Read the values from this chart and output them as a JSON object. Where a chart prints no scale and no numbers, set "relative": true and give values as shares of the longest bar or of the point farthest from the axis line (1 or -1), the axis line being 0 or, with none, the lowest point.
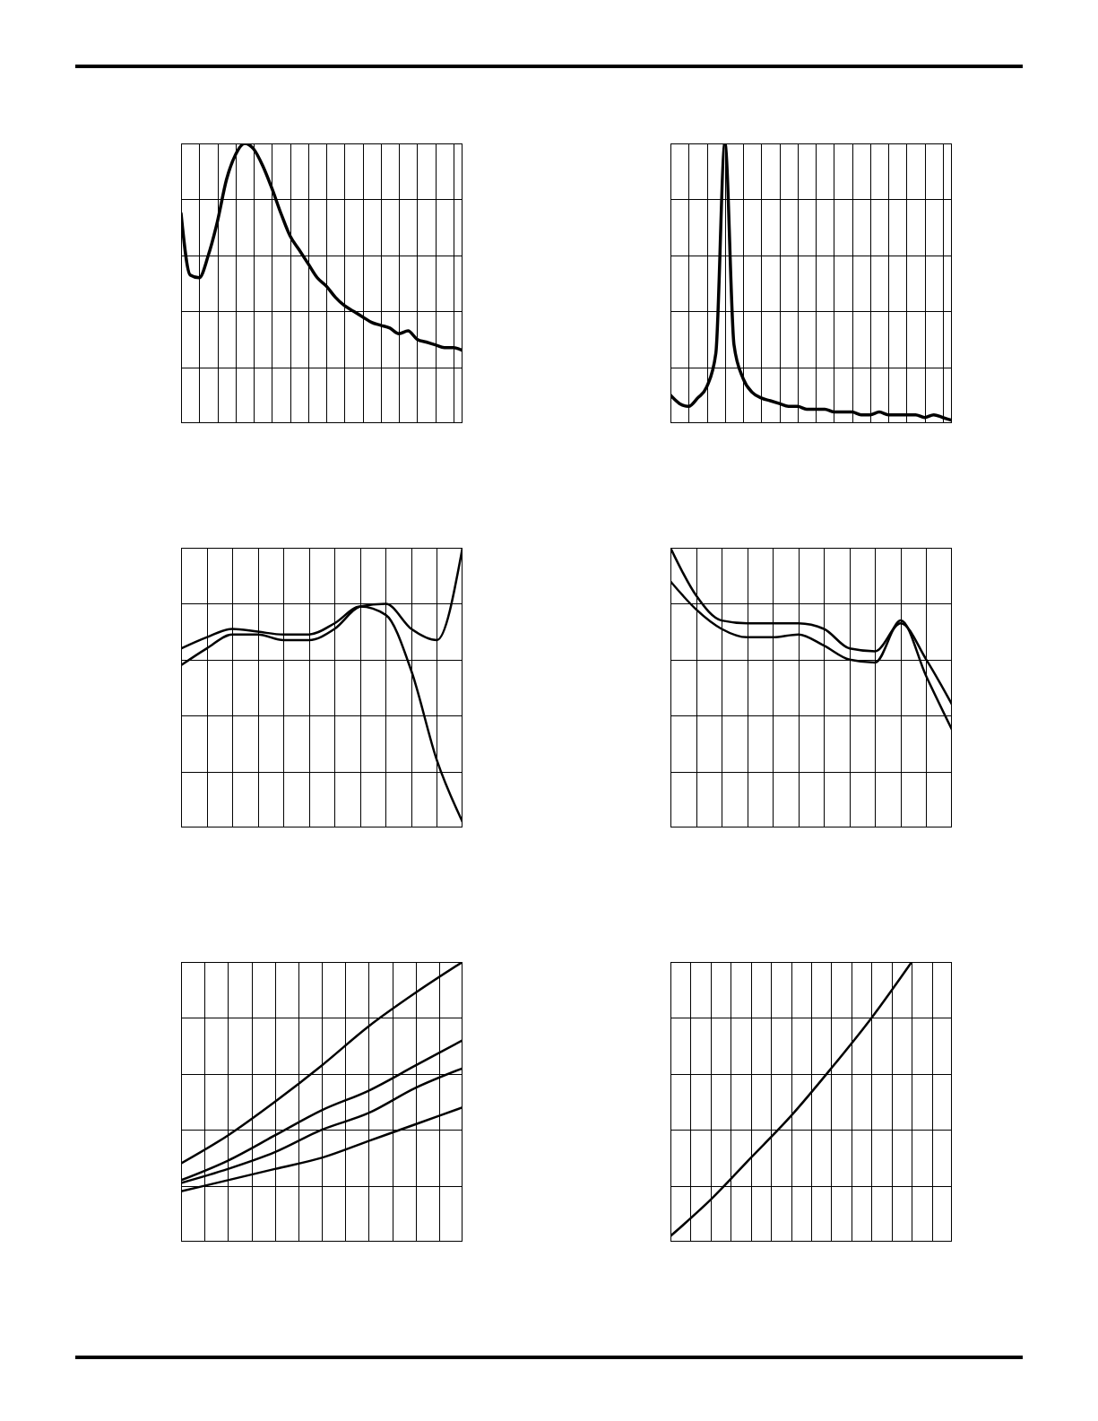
{
  "chart_data": [
    {
      "type": "line",
      "relative": true,
      "grid": true,
      "categories": [
        null,
        null,
        null,
        null,
        null,
        null,
        null,
        null,
        null,
        null,
        null,
        null,
        null,
        null,
        null,
        null,
        null,
        null,
        null,
        null,
        null,
        null,
        null,
        null,
        null,
        null,
        null,
        null,
        null,
        null,
        null,
        null
      ],
      "series": [
        {
          "color": "#000000",
          "values": [
            0.75,
            0.53,
            0.52,
            0.6,
            0.72,
            0.87,
            0.96,
            1,
            0.98,
            0.92,
            0.84,
            0.75,
            0.67,
            0.62,
            0.57,
            0.52,
            0.49,
            0.45,
            0.42,
            0.4,
            0.38,
            0.36,
            0.35,
            0.34,
            0.32,
            0.33,
            0.3,
            0.29,
            0.28,
            0.27,
            0.27,
            0.26
          ]
        }
      ]
    },
    {
      "type": "line",
      "relative": true,
      "grid": true,
      "categories": [
        null,
        null,
        null,
        null,
        null,
        null,
        null,
        null,
        null,
        null,
        null,
        null,
        null,
        null,
        null,
        null,
        null,
        null,
        null,
        null,
        null,
        null,
        null,
        null,
        null,
        null,
        null,
        null,
        null,
        null,
        null,
        null
      ],
      "series": [
        {
          "color": "#000000",
          "values": [
            0.1,
            0.07,
            0.06,
            0.09,
            0.13,
            0.25,
            1,
            0.28,
            0.16,
            0.11,
            0.09,
            0.08,
            0.07,
            0.06,
            0.06,
            0.05,
            0.05,
            0.05,
            0.04,
            0.04,
            0.04,
            0.03,
            0.03,
            0.04,
            0.03,
            0.03,
            0.03,
            0.03,
            0.02,
            0.03,
            0.02,
            0.01
          ]
        }
      ]
    },
    {
      "type": "line",
      "relative": true,
      "grid": true,
      "categories": [
        null,
        null,
        null,
        null,
        null,
        null,
        null,
        null,
        null,
        null,
        null,
        null
      ],
      "series": [
        {
          "color": "#000000",
          "values": [
            0.64,
            0.68,
            0.71,
            0.7,
            0.69,
            0.69,
            0.73,
            0.79,
            0.76,
            0.56,
            0.24,
            0.02
          ]
        },
        {
          "color": "#000000",
          "values": [
            0.58,
            0.64,
            0.69,
            0.69,
            0.67,
            0.67,
            0.71,
            0.79,
            0.8,
            0.71,
            0.67,
            1
          ]
        }
      ]
    },
    {
      "type": "line",
      "relative": true,
      "grid": true,
      "categories": [
        null,
        null,
        null,
        null,
        null,
        null,
        null,
        null,
        null,
        null,
        null,
        null
      ],
      "series": [
        {
          "color": "#000000",
          "values": [
            1,
            0.83,
            0.74,
            0.73,
            0.73,
            0.73,
            0.71,
            0.64,
            0.63,
            0.73,
            0.6,
            0.44
          ]
        },
        {
          "color": "#000000",
          "values": [
            0.88,
            0.78,
            0.71,
            0.68,
            0.68,
            0.69,
            0.65,
            0.6,
            0.59,
            0.74,
            0.54,
            0.35
          ]
        }
      ]
    },
    {
      "type": "line",
      "relative": true,
      "grid": true,
      "categories": [
        null,
        null,
        null,
        null,
        null,
        null,
        null
      ],
      "series": [
        {
          "color": "#000000",
          "values": [
            0.28,
            0.38,
            0.5,
            0.63,
            0.77,
            0.89,
            1
          ]
        },
        {
          "color": "#000000",
          "values": [
            0.22,
            0.29,
            0.38,
            0.47,
            0.54,
            0.63,
            0.72
          ]
        },
        {
          "color": "#000000",
          "values": [
            0.21,
            0.26,
            0.32,
            0.4,
            0.46,
            0.55,
            0.62
          ]
        },
        {
          "color": "#000000",
          "values": [
            0.18,
            0.22,
            0.26,
            0.3,
            0.36,
            0.42,
            0.48
          ]
        }
      ]
    },
    {
      "type": "line",
      "relative": true,
      "grid": true,
      "categories": [
        null,
        null,
        null,
        null,
        null,
        null,
        null,
        null
      ],
      "series": [
        {
          "color": "#000000",
          "values": [
            0.02,
            0.15,
            0.3,
            0.45,
            0.62,
            0.8,
            1,
            null
          ]
        }
      ]
    }
  ]
}
